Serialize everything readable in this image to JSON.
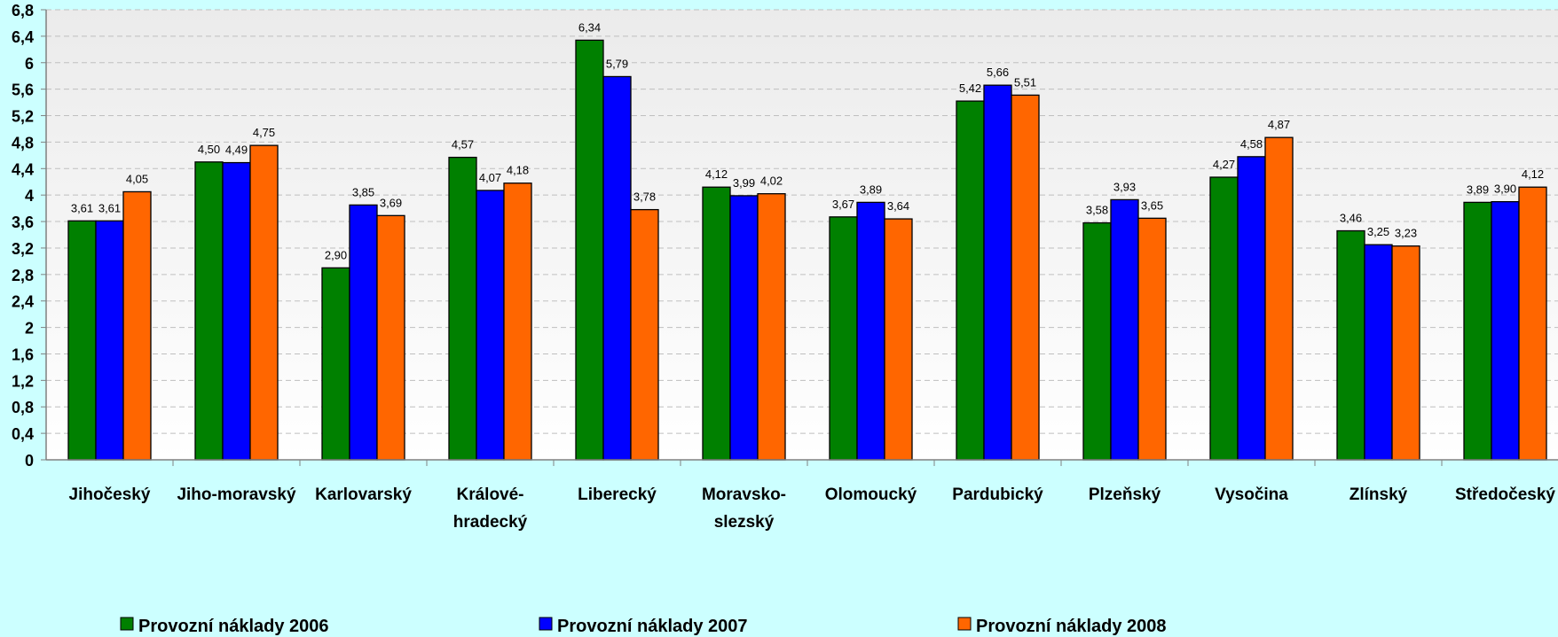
{
  "chart_data": {
    "type": "bar",
    "categories": [
      [
        "Jihočeský"
      ],
      [
        "Jiho-moravský"
      ],
      [
        "Karlovarský"
      ],
      [
        "Královéhradecký"
      ],
      [
        "Liberecký"
      ],
      [
        "Moravsko-slezský"
      ],
      [
        "Olomoucký"
      ],
      [
        "Pardubický"
      ],
      [
        "Plzeňský"
      ],
      [
        "Vysočina"
      ],
      [
        "Zlínský"
      ],
      [
        "Středočeský"
      ]
    ],
    "category_display": [
      [
        "Jihočeský"
      ],
      [
        "Jiho-moravský"
      ],
      [
        "Karlovarský"
      ],
      [
        "Králové-",
        "hradecký"
      ],
      [
        "Liberecký"
      ],
      [
        "Moravsko-",
        "slezský"
      ],
      [
        "Olomoucký"
      ],
      [
        "Pardubický"
      ],
      [
        "Plzeňský"
      ],
      [
        "Vysočina"
      ],
      [
        "Zlínský"
      ],
      [
        "Středočeský"
      ]
    ],
    "series": [
      {
        "name": "Provozní náklady 2006",
        "color": "#008000",
        "values": [
          3.61,
          4.5,
          2.9,
          4.57,
          6.34,
          4.12,
          3.67,
          5.42,
          3.58,
          4.27,
          3.46,
          3.89
        ],
        "labels": [
          "3,61",
          "4,50",
          "2,90",
          "4,57",
          "6,34",
          "4,12",
          "3,67",
          "5,42",
          "3,58",
          "4,27",
          "3,46",
          "3,89"
        ]
      },
      {
        "name": "Provozní náklady 2007",
        "color": "#0000ff",
        "values": [
          3.61,
          4.49,
          3.85,
          4.07,
          5.79,
          3.99,
          3.89,
          5.66,
          3.93,
          4.58,
          3.25,
          3.9
        ],
        "labels": [
          "3,61",
          "4,49",
          "3,85",
          "4,07",
          "5,79",
          "3,99",
          "3,89",
          "5,66",
          "3,93",
          "4,58",
          "3,25",
          "3,90"
        ]
      },
      {
        "name": "Provozní náklady 2008",
        "color": "#ff6600",
        "values": [
          4.05,
          4.75,
          3.69,
          4.18,
          3.78,
          4.02,
          3.64,
          5.51,
          3.65,
          4.87,
          3.23,
          4.12
        ],
        "labels": [
          "4,05",
          "4,75",
          "3,69",
          "4,18",
          "3,78",
          "4,02",
          "3,64",
          "5,51",
          "3,65",
          "4,87",
          "3,23",
          "4,12"
        ]
      }
    ],
    "yticks": [
      "0",
      "0,4",
      "0,8",
      "1,2",
      "1,6",
      "2",
      "2,4",
      "2,8",
      "3,2",
      "3,6",
      "4",
      "4,4",
      "4,8",
      "5,2",
      "5,6",
      "6",
      "6,4",
      "6,8"
    ],
    "ylim": [
      0,
      6.8
    ],
    "title": "",
    "xlabel": "",
    "ylabel": "",
    "grid": true,
    "legend_position": "bottom",
    "colors": {
      "page_background": "#ccffff",
      "plot_background_top": "#ebebeb",
      "plot_background_bottom": "#ffffff",
      "gridline": "#bfbfbf",
      "axis": "#808080"
    }
  }
}
